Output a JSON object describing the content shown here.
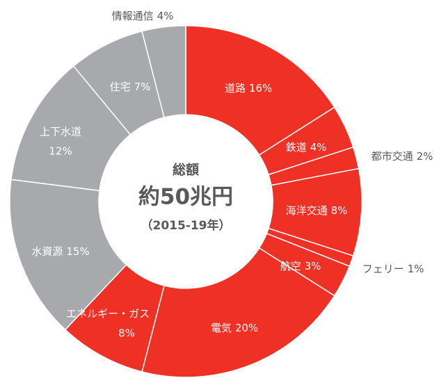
{
  "chart_data": {
    "type": "donut",
    "categories": [
      "道路",
      "鉄道",
      "都市交通",
      "海洋交通",
      "フェリー",
      "航空",
      "電気",
      "エネルギー・ガス",
      "水資源",
      "上下水道",
      "住宅",
      "情報通信"
    ],
    "values": [
      16,
      4,
      2,
      8,
      1,
      3,
      20,
      8,
      15,
      12,
      7,
      4
    ],
    "value_labels": [
      "16%",
      "4%",
      "2%",
      "8%",
      "1%",
      "3%",
      "20%",
      "8%",
      "15%",
      "12%",
      "7%",
      "4%"
    ],
    "colors": [
      "#ee3124",
      "#ee3124",
      "#ee3124",
      "#ee3124",
      "#ee3124",
      "#ee3124",
      "#ee3124",
      "#ee3124",
      "#a7a9ac",
      "#a7a9ac",
      "#a7a9ac",
      "#a7a9ac"
    ],
    "center_text": [
      "総額",
      "約50兆円",
      "（2015-19年）"
    ]
  }
}
